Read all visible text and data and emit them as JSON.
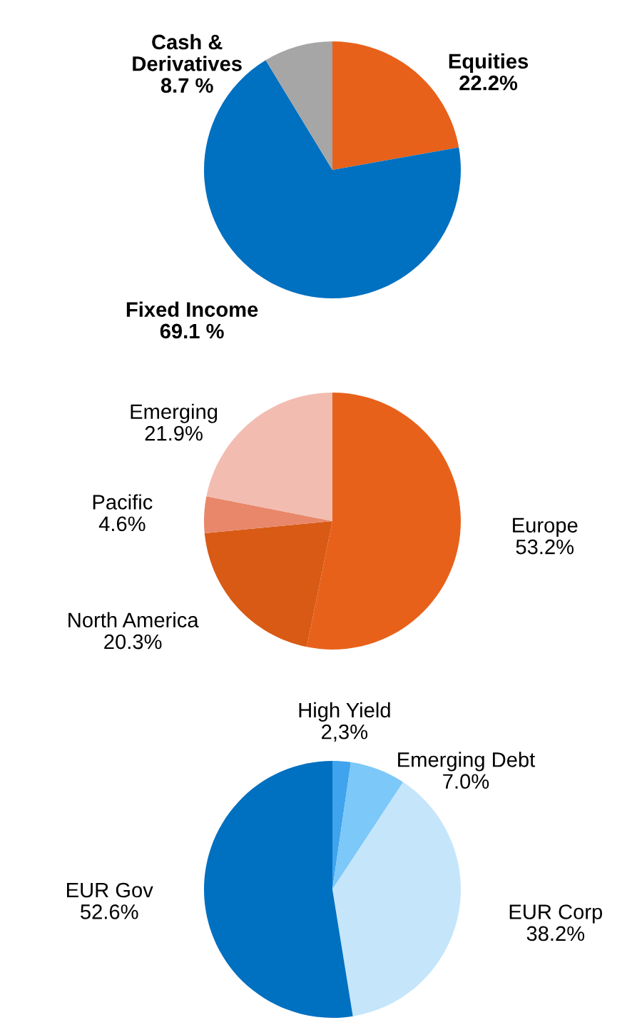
{
  "chart_data": [
    {
      "type": "pie",
      "categories": [
        "Equities",
        "Fixed Income",
        "Cash &\nDerivatives"
      ],
      "values": [
        22.2,
        69.1,
        8.7
      ],
      "value_labels": [
        "22.2%",
        "69.1 %",
        "8.7 %"
      ],
      "colors": [
        "#e8611a",
        "#0070c0",
        "#a6a6a6"
      ]
    },
    {
      "type": "pie",
      "categories": [
        "Europe",
        "North America",
        "Pacific",
        "Emerging"
      ],
      "values": [
        53.2,
        20.3,
        4.6,
        21.9
      ],
      "value_labels": [
        "53.2%",
        "20.3%",
        "4.6%",
        "21.9%"
      ],
      "colors": [
        "#e8611a",
        "#d85a14",
        "#e8876a",
        "#f2bcb0"
      ]
    },
    {
      "type": "pie",
      "categories": [
        "High Yield",
        "Emerging Debt",
        "EUR Corp",
        "EUR Gov"
      ],
      "values": [
        2.3,
        7.0,
        38.2,
        52.6
      ],
      "value_labels": [
        "2,3%",
        "7.0%",
        "38.2%",
        "52.6%"
      ],
      "colors": [
        "#3fa3ee",
        "#7cc8f8",
        "#c5e5fb",
        "#0070c0"
      ]
    }
  ]
}
